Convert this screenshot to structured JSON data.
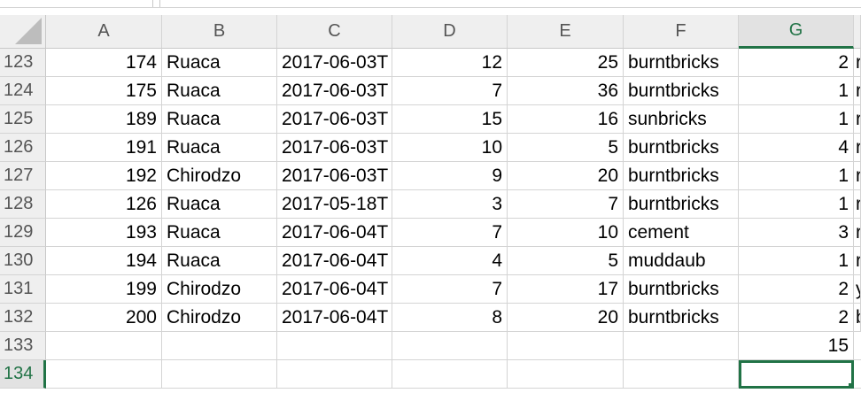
{
  "columns": [
    "A",
    "B",
    "C",
    "D",
    "E",
    "F",
    "G"
  ],
  "selected_column": "G",
  "rows": [
    {
      "n": "123",
      "a": "174",
      "b": "Ruaca",
      "c": "2017-06-03T",
      "d": "12",
      "e": "25",
      "f": "burntbricks",
      "g": "2",
      "h": "r"
    },
    {
      "n": "124",
      "a": "175",
      "b": "Ruaca",
      "c": "2017-06-03T",
      "d": "7",
      "e": "36",
      "f": "burntbricks",
      "g": "1",
      "h": "r"
    },
    {
      "n": "125",
      "a": "189",
      "b": "Ruaca",
      "c": "2017-06-03T",
      "d": "15",
      "e": "16",
      "f": "sunbricks",
      "g": "1",
      "h": "r"
    },
    {
      "n": "126",
      "a": "191",
      "b": "Ruaca",
      "c": "2017-06-03T",
      "d": "10",
      "e": "5",
      "f": "burntbricks",
      "g": "4",
      "h": "r"
    },
    {
      "n": "127",
      "a": "192",
      "b": "Chirodzo",
      "c": "2017-06-03T",
      "d": "9",
      "e": "20",
      "f": "burntbricks",
      "g": "1",
      "h": "r"
    },
    {
      "n": "128",
      "a": "126",
      "b": "Ruaca",
      "c": "2017-05-18T",
      "d": "3",
      "e": "7",
      "f": "burntbricks",
      "g": "1",
      "h": "r"
    },
    {
      "n": "129",
      "a": "193",
      "b": "Ruaca",
      "c": "2017-06-04T",
      "d": "7",
      "e": "10",
      "f": "cement",
      "g": "3",
      "h": "r"
    },
    {
      "n": "130",
      "a": "194",
      "b": "Ruaca",
      "c": "2017-06-04T",
      "d": "4",
      "e": "5",
      "f": "muddaub",
      "g": "1",
      "h": "r"
    },
    {
      "n": "131",
      "a": "199",
      "b": "Chirodzo",
      "c": "2017-06-04T",
      "d": "7",
      "e": "17",
      "f": "burntbricks",
      "g": "2",
      "h": "y"
    },
    {
      "n": "132",
      "a": "200",
      "b": "Chirodzo",
      "c": "2017-06-04T",
      "d": "8",
      "e": "20",
      "f": "burntbricks",
      "g": "2",
      "h": "b"
    }
  ],
  "row_133": {
    "n": "133",
    "g": "15"
  },
  "row_134": {
    "n": "134"
  },
  "accent_color": "#217346"
}
